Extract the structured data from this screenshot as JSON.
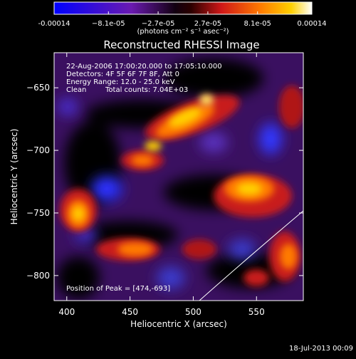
{
  "colorbar": {
    "tick_labels": [
      "-0.00014",
      "−8.1e-05",
      "−2.7e-05",
      "2.7e-05",
      "8.1e-05",
      "0.00014"
    ],
    "tick_values": [
      -0.00014,
      -8.1e-05,
      -2.7e-05,
      2.7e-05,
      8.1e-05,
      0.00014
    ],
    "range": [
      -0.00014,
      0.00014
    ],
    "units_label": "(photons cm⁻² s⁻¹ asec⁻²)",
    "colormap": [
      "#0000ff",
      "#6a0dad",
      "#000000",
      "#b22222",
      "#ff6a00",
      "#ffd700",
      "#ffffff"
    ]
  },
  "plot": {
    "title": "Reconstructed RHESSI Image",
    "xlabel": "Heliocentric X (arcsec)",
    "ylabel": "Heliocentric Y (arcsec)",
    "x_ticks": [
      "400",
      "450",
      "500",
      "550"
    ],
    "y_ticks": [
      "−650",
      "−700",
      "−750",
      "−800"
    ],
    "xlim": [
      390,
      587
    ],
    "ylim": [
      -820,
      -622
    ]
  },
  "annotations": {
    "time_range": "22-Aug-2006 17:00:20.000 to 17:05:10.000",
    "detectors": "Detectors: 4F 5F 6F 7F 8F, Att 0",
    "energy": "Energy Range: 12.0 - 25.0 keV",
    "clean": "Clean",
    "counts": "Total counts: 7.04E+03",
    "peak": "Position of Peak = [474,-693]"
  },
  "footer": {
    "timestamp": "18-Jul-2013 00:09"
  }
}
